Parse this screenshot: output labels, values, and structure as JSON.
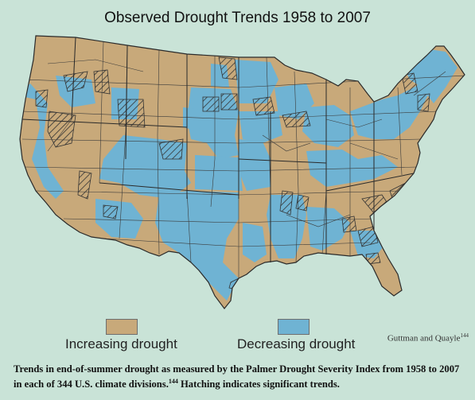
{
  "title": "Observed Drought Trends 1958 to 2007",
  "colors": {
    "background": "#c9e3d7",
    "increasing": "#c8a97a",
    "decreasing": "#6fb3d3",
    "border": "#3a3a3a"
  },
  "legend": {
    "increasing_label": "Increasing drought",
    "decreasing_label": "Decreasing drought"
  },
  "credit": {
    "text": "Guttman and Quayle",
    "ref": "144"
  },
  "caption": {
    "part1": "Trends in end-of-summer drought as measured by the Palmer Drought Severity Index from 1958 to 2007 in each of 344 U.S. climate divisions.",
    "ref": "144",
    "part2": " Hatching indicates significant trends."
  }
}
